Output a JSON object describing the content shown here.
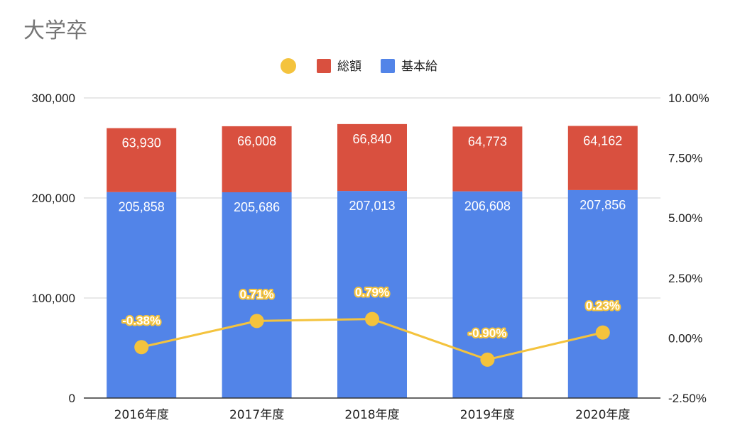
{
  "chart_data": {
    "type": "bar",
    "stacked": true,
    "title": "大学卒",
    "categories": [
      "2016年度",
      "2017年度",
      "2018年度",
      "2019年度",
      "2020年度"
    ],
    "series": [
      {
        "name": "基本給",
        "axis": "left",
        "color": "#5284E8",
        "values": [
          205858,
          205686,
          207013,
          206608,
          207856
        ],
        "labels": [
          "205,858",
          "205,686",
          "207,013",
          "206,608",
          "207,856"
        ]
      },
      {
        "name": "総額",
        "axis": "left",
        "color": "#D9503F",
        "values": [
          63930,
          66008,
          66840,
          64773,
          64162
        ],
        "labels": [
          "63,930",
          "66,008",
          "66,840",
          "64,773",
          "64,162"
        ]
      },
      {
        "name": "",
        "type": "line",
        "axis": "right",
        "color": "#F4C33D",
        "values": [
          -0.38,
          0.71,
          0.79,
          -0.9,
          0.23
        ],
        "labels": [
          "-0.38%",
          "0.71%",
          "0.79%",
          "-0.90%",
          "0.23%"
        ]
      }
    ],
    "y_left": {
      "ylim": [
        0,
        300000
      ],
      "ticks": [
        0,
        100000,
        200000,
        300000
      ],
      "tick_labels": [
        "0",
        "100,000",
        "200,000",
        "300,000"
      ]
    },
    "y_right": {
      "ylim": [
        -2.5,
        10
      ],
      "ticks": [
        -2.5,
        0,
        2.5,
        5,
        7.5,
        10
      ],
      "tick_labels": [
        "-2.50%",
        "0.00%",
        "2.50%",
        "5.00%",
        "7.50%",
        "10.00%"
      ]
    },
    "legend": {
      "position": "top",
      "items": [
        {
          "name": "",
          "color": "#F4C33D",
          "shape": "circle"
        },
        {
          "name": "総額",
          "color": "#D9503F",
          "shape": "square"
        },
        {
          "name": "基本給",
          "color": "#5284E8",
          "shape": "square"
        }
      ]
    },
    "grid": true
  }
}
